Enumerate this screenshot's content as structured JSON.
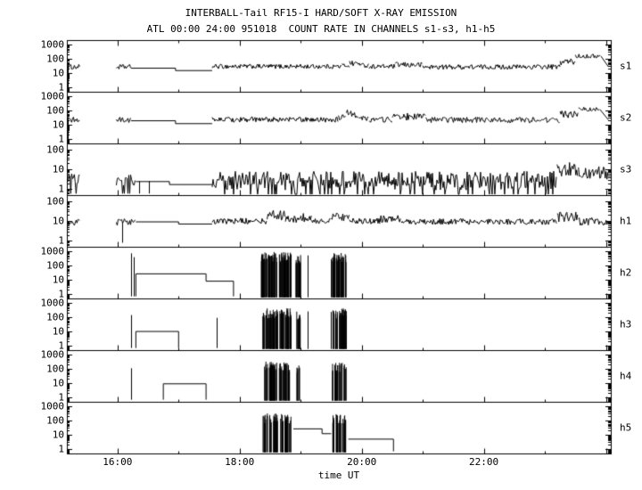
{
  "page": {
    "background": "#ffffff",
    "foreground": "#000000"
  },
  "chart_data": {
    "type": "line",
    "title": "INTERBALL-Tail RF15-I HARD/SOFT X-RAY EMISSION",
    "subtitle": "ATL 00:00 24:00 951018  COUNT RATE IN CHANNELS s1-s3, h1-h5",
    "xlabel": "time UT",
    "y_scale": "log",
    "x_range_hours": [
      15.17,
      24.08
    ],
    "x_major_ticks": [
      16,
      18,
      20,
      22
    ],
    "x_major_labels": [
      "16:00",
      "18:00",
      "20:00",
      "22:00"
    ],
    "panels": [
      {
        "label": "s1",
        "y_ticks": [
          1,
          10,
          100,
          1000
        ],
        "y_range": [
          0.5,
          2000
        ],
        "segments": [
          {
            "mode": "vline",
            "t": 15.19,
            "lo": 0.7,
            "hi": 35
          },
          {
            "mode": "noisy",
            "t0": 15.19,
            "t1": 15.38,
            "lo": 18,
            "hi": 40
          },
          {
            "mode": "noisy",
            "t0": 15.98,
            "t1": 16.22,
            "lo": 18,
            "hi": 40
          },
          {
            "mode": "path",
            "points": [
              [
                16.22,
                22
              ],
              [
                16.95,
                22
              ],
              [
                16.95,
                15
              ],
              [
                17.55,
                15
              ]
            ]
          },
          {
            "mode": "noisy",
            "t0": 17.55,
            "t1": 19.68,
            "lo": 20,
            "hi": 42
          },
          {
            "mode": "noisy",
            "t0": 19.68,
            "t1": 19.8,
            "lo": 24,
            "hi": 50
          },
          {
            "mode": "noisy",
            "t0": 19.8,
            "t1": 19.98,
            "lo": 30,
            "hi": 75
          },
          {
            "mode": "noisy",
            "t0": 19.98,
            "t1": 20.12,
            "lo": 24,
            "hi": 50
          },
          {
            "mode": "noisy",
            "t0": 20.12,
            "t1": 20.55,
            "lo": 20,
            "hi": 42
          },
          {
            "mode": "noisy",
            "t0": 20.55,
            "t1": 21.0,
            "lo": 24,
            "hi": 58
          },
          {
            "mode": "noisy",
            "t0": 21.0,
            "t1": 23.25,
            "lo": 18,
            "hi": 40
          },
          {
            "mode": "noisy",
            "t0": 23.25,
            "t1": 23.5,
            "lo": 35,
            "hi": 110
          },
          {
            "mode": "noisy",
            "t0": 23.5,
            "t1": 23.92,
            "lo": 110,
            "hi": 210
          },
          {
            "mode": "path",
            "points": [
              [
                23.92,
                150
              ],
              [
                24.04,
                28
              ]
            ]
          }
        ]
      },
      {
        "label": "s2",
        "y_ticks": [
          1,
          10,
          100,
          1000
        ],
        "y_range": [
          0.5,
          2000
        ],
        "segments": [
          {
            "mode": "vline",
            "t": 15.19,
            "lo": 0.7,
            "hi": 30
          },
          {
            "mode": "noisy",
            "t0": 15.19,
            "t1": 15.38,
            "lo": 14,
            "hi": 34
          },
          {
            "mode": "noisy",
            "t0": 15.98,
            "t1": 16.22,
            "lo": 14,
            "hi": 34
          },
          {
            "mode": "path",
            "points": [
              [
                16.22,
                19
              ],
              [
                16.95,
                19
              ],
              [
                16.95,
                12
              ],
              [
                17.55,
                12
              ]
            ]
          },
          {
            "mode": "noisy",
            "t0": 17.55,
            "t1": 19.62,
            "lo": 15,
            "hi": 36
          },
          {
            "mode": "noisy",
            "t0": 19.62,
            "t1": 19.75,
            "lo": 20,
            "hi": 50
          },
          {
            "mode": "noisy",
            "t0": 19.75,
            "t1": 19.95,
            "lo": 30,
            "hi": 110
          },
          {
            "mode": "noisy",
            "t0": 19.95,
            "t1": 20.12,
            "lo": 18,
            "hi": 48
          },
          {
            "mode": "noisy",
            "t0": 20.12,
            "t1": 20.5,
            "lo": 15,
            "hi": 36
          },
          {
            "mode": "noisy",
            "t0": 20.5,
            "t1": 21.05,
            "lo": 20,
            "hi": 65
          },
          {
            "mode": "noisy",
            "t0": 21.05,
            "t1": 23.25,
            "lo": 14,
            "hi": 34
          },
          {
            "mode": "noisy",
            "t0": 23.25,
            "t1": 23.55,
            "lo": 30,
            "hi": 95
          },
          {
            "mode": "noisy",
            "t0": 23.55,
            "t1": 23.9,
            "lo": 85,
            "hi": 170
          },
          {
            "mode": "path",
            "points": [
              [
                23.9,
                120
              ],
              [
                24.04,
                22
              ]
            ]
          }
        ]
      },
      {
        "label": "s3",
        "y_ticks": [
          1,
          10,
          100
        ],
        "y_range": [
          0.5,
          200
        ],
        "segments": [
          {
            "mode": "noisy",
            "t0": 15.19,
            "t1": 15.38,
            "lo": 1.4,
            "hi": 6,
            "drop_p": 0.15,
            "drop_lo": 0.6
          },
          {
            "mode": "noisy",
            "t0": 15.98,
            "t1": 16.3,
            "lo": 1.4,
            "hi": 6,
            "drop_p": 0.15,
            "drop_lo": 0.6
          },
          {
            "mode": "vline",
            "t": 16.35,
            "lo": 0.6,
            "hi": 2.5
          },
          {
            "mode": "vline",
            "t": 16.52,
            "lo": 0.6,
            "hi": 2.5
          },
          {
            "mode": "path",
            "points": [
              [
                16.3,
                2.4
              ],
              [
                16.85,
                2.4
              ],
              [
                16.85,
                1.7
              ],
              [
                17.55,
                1.7
              ]
            ]
          },
          {
            "mode": "noisy",
            "t0": 17.55,
            "t1": 23.2,
            "lo": 0.9,
            "hi": 8,
            "drop_p": 0.1,
            "drop_lo": 0.55
          },
          {
            "mode": "noisy",
            "t0": 23.2,
            "t1": 23.55,
            "lo": 4,
            "hi": 22
          },
          {
            "mode": "noisy",
            "t0": 23.55,
            "t1": 24.04,
            "lo": 3,
            "hi": 14
          }
        ]
      },
      {
        "label": "h1",
        "y_ticks": [
          1,
          10,
          100
        ],
        "y_range": [
          0.5,
          200
        ],
        "segments": [
          {
            "mode": "noisy",
            "t0": 15.19,
            "t1": 15.38,
            "lo": 6,
            "hi": 12
          },
          {
            "mode": "vline",
            "t": 16.08,
            "lo": 0.8,
            "hi": 9
          },
          {
            "mode": "noisy",
            "t0": 15.98,
            "t1": 16.3,
            "lo": 6,
            "hi": 13
          },
          {
            "mode": "path",
            "points": [
              [
                16.3,
                9
              ],
              [
                17.0,
                9
              ],
              [
                17.0,
                7
              ],
              [
                17.55,
                7
              ]
            ]
          },
          {
            "mode": "noisy",
            "t0": 17.55,
            "t1": 18.45,
            "lo": 7,
            "hi": 14
          },
          {
            "mode": "noisy",
            "t0": 18.45,
            "t1": 18.75,
            "lo": 10,
            "hi": 34
          },
          {
            "mode": "noisy",
            "t0": 18.75,
            "t1": 19.0,
            "lo": 8,
            "hi": 18
          },
          {
            "mode": "noisy",
            "t0": 19.0,
            "t1": 19.18,
            "lo": 9,
            "hi": 24
          },
          {
            "mode": "noisy",
            "t0": 19.18,
            "t1": 19.5,
            "lo": 7,
            "hi": 14
          },
          {
            "mode": "noisy",
            "t0": 19.5,
            "t1": 19.8,
            "lo": 9,
            "hi": 26
          },
          {
            "mode": "noisy",
            "t0": 19.8,
            "t1": 20.3,
            "lo": 7,
            "hi": 14
          },
          {
            "mode": "noisy",
            "t0": 20.3,
            "t1": 20.65,
            "lo": 8,
            "hi": 20
          },
          {
            "mode": "noisy",
            "t0": 20.65,
            "t1": 23.2,
            "lo": 6.5,
            "hi": 13
          },
          {
            "mode": "noisy",
            "t0": 23.2,
            "t1": 23.55,
            "lo": 9,
            "hi": 28
          },
          {
            "mode": "noisy",
            "t0": 23.55,
            "t1": 24.04,
            "lo": 6,
            "hi": 15
          }
        ]
      },
      {
        "label": "h2",
        "y_ticks": [
          1,
          10,
          100,
          1000
        ],
        "y_range": [
          0.5,
          2000
        ],
        "segments": [
          {
            "mode": "vline",
            "t": 16.22,
            "lo": 0.7,
            "hi": 700
          },
          {
            "mode": "vline",
            "t": 16.26,
            "lo": 0.7,
            "hi": 380
          },
          {
            "mode": "path",
            "points": [
              [
                16.3,
                0.7
              ],
              [
                16.3,
                26
              ],
              [
                17.45,
                26
              ],
              [
                17.45,
                8
              ],
              [
                17.9,
                8
              ],
              [
                17.9,
                0.7
              ]
            ]
          },
          {
            "mode": "burst",
            "t0": 18.35,
            "t1": 18.62,
            "count": 50,
            "top_lo": 150,
            "top_hi": 900,
            "base": 0.6
          },
          {
            "mode": "burst",
            "t0": 18.65,
            "t1": 18.85,
            "count": 35,
            "top_lo": 150,
            "top_hi": 900,
            "base": 0.6
          },
          {
            "mode": "burst",
            "t0": 18.92,
            "t1": 19.0,
            "count": 14,
            "top_lo": 120,
            "top_hi": 600,
            "base": 0.6
          },
          {
            "mode": "vline",
            "t": 19.12,
            "lo": 0.6,
            "hi": 500
          },
          {
            "mode": "burst",
            "t0": 19.5,
            "t1": 19.75,
            "count": 40,
            "top_lo": 150,
            "top_hi": 800,
            "base": 0.6
          }
        ]
      },
      {
        "label": "h3",
        "y_ticks": [
          1,
          10,
          100,
          1000
        ],
        "y_range": [
          0.5,
          2000
        ],
        "segments": [
          {
            "mode": "vline",
            "t": 16.22,
            "lo": 0.7,
            "hi": 140
          },
          {
            "mode": "path",
            "points": [
              [
                16.3,
                0.7
              ],
              [
                16.3,
                10
              ],
              [
                17.0,
                10
              ],
              [
                17.0,
                0.7
              ]
            ]
          },
          {
            "mode": "vline",
            "t": 17.62,
            "lo": 0.7,
            "hi": 90
          },
          {
            "mode": "burst",
            "t0": 18.38,
            "t1": 18.62,
            "count": 35,
            "top_lo": 80,
            "top_hi": 420,
            "base": 0.6
          },
          {
            "mode": "burst",
            "t0": 18.65,
            "t1": 18.85,
            "count": 25,
            "top_lo": 80,
            "top_hi": 420,
            "base": 0.6
          },
          {
            "mode": "burst",
            "t0": 18.92,
            "t1": 19.0,
            "count": 10,
            "top_lo": 60,
            "top_hi": 300,
            "base": 0.6
          },
          {
            "mode": "vline",
            "t": 19.12,
            "lo": 0.6,
            "hi": 250
          },
          {
            "mode": "burst",
            "t0": 19.5,
            "t1": 19.75,
            "count": 30,
            "top_lo": 80,
            "top_hi": 420,
            "base": 0.6
          }
        ]
      },
      {
        "label": "h4",
        "y_ticks": [
          1,
          10,
          100,
          1000
        ],
        "y_range": [
          0.5,
          2000
        ],
        "segments": [
          {
            "mode": "vline",
            "t": 16.22,
            "lo": 0.7,
            "hi": 110
          },
          {
            "mode": "path",
            "points": [
              [
                16.75,
                0.7
              ],
              [
                16.75,
                9
              ],
              [
                17.45,
                9
              ],
              [
                17.45,
                0.7
              ]
            ]
          },
          {
            "mode": "burst",
            "t0": 18.4,
            "t1": 18.62,
            "count": 28,
            "top_lo": 60,
            "top_hi": 320,
            "base": 0.6
          },
          {
            "mode": "burst",
            "t0": 18.65,
            "t1": 18.82,
            "count": 20,
            "top_lo": 60,
            "top_hi": 320,
            "base": 0.6
          },
          {
            "mode": "burst",
            "t0": 18.93,
            "t1": 18.99,
            "count": 7,
            "top_lo": 50,
            "top_hi": 180,
            "base": 0.6
          },
          {
            "mode": "burst",
            "t0": 19.52,
            "t1": 19.75,
            "count": 26,
            "top_lo": 60,
            "top_hi": 320,
            "base": 0.6
          }
        ]
      },
      {
        "label": "h5",
        "y_ticks": [
          1,
          10,
          100,
          1000
        ],
        "y_range": [
          0.5,
          2000
        ],
        "segments": [
          {
            "mode": "burst",
            "t0": 18.38,
            "t1": 18.62,
            "count": 30,
            "top_lo": 60,
            "top_hi": 320,
            "base": 0.6
          },
          {
            "mode": "burst",
            "t0": 18.65,
            "t1": 18.85,
            "count": 22,
            "top_lo": 60,
            "top_hi": 320,
            "base": 0.6
          },
          {
            "mode": "path",
            "points": [
              [
                18.88,
                26
              ],
              [
                19.35,
                26
              ],
              [
                19.35,
                12
              ],
              [
                19.5,
                12
              ]
            ]
          },
          {
            "mode": "burst",
            "t0": 19.5,
            "t1": 19.75,
            "count": 28,
            "top_lo": 60,
            "top_hi": 320,
            "base": 0.6
          },
          {
            "mode": "path",
            "points": [
              [
                19.78,
                5
              ],
              [
                20.52,
                5
              ],
              [
                20.52,
                0.7
              ]
            ]
          }
        ]
      }
    ]
  }
}
